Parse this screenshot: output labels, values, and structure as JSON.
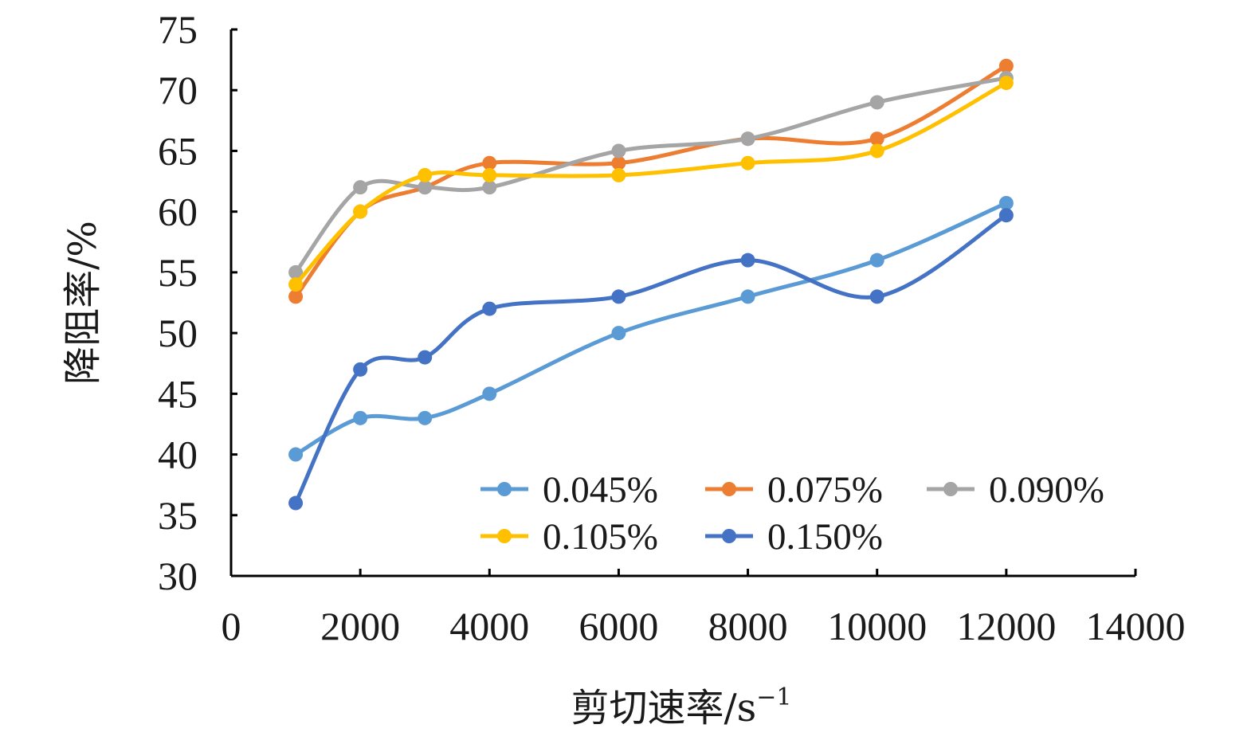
{
  "chart_data": {
    "type": "line",
    "title": "",
    "xlabel": "剪切速率/s",
    "xlabel_superscript": "−1",
    "ylabel": "降阻率/%",
    "xlim": [
      0,
      14000
    ],
    "ylim": [
      30,
      75
    ],
    "x_ticks": [
      0,
      2000,
      4000,
      6000,
      8000,
      10000,
      12000,
      14000
    ],
    "y_ticks": [
      30,
      35,
      40,
      45,
      50,
      55,
      60,
      65,
      70,
      75
    ],
    "grid": false,
    "legend_position": "inside-bottom-right",
    "smooth": true,
    "x": [
      1000,
      2000,
      3000,
      4000,
      6000,
      8000,
      10000,
      12000
    ],
    "series": [
      {
        "name": "0.045%",
        "color": "#5B9BD5",
        "values": [
          40,
          43,
          43,
          45,
          50,
          53,
          56,
          60.7
        ]
      },
      {
        "name": "0.075%",
        "color": "#ED7D31",
        "values": [
          53,
          60,
          62,
          64,
          64,
          66,
          66,
          72
        ]
      },
      {
        "name": "0.090%",
        "color": "#A5A5A5",
        "values": [
          55,
          62,
          62,
          62,
          65,
          66,
          69,
          71
        ]
      },
      {
        "name": "0.105%",
        "color": "#FFC000",
        "values": [
          54,
          60,
          63,
          63,
          63,
          64,
          65,
          70.6
        ]
      },
      {
        "name": "0.150%",
        "color": "#4472C4",
        "values": [
          36,
          47,
          48,
          52,
          53,
          56,
          53,
          59.7
        ]
      }
    ]
  }
}
